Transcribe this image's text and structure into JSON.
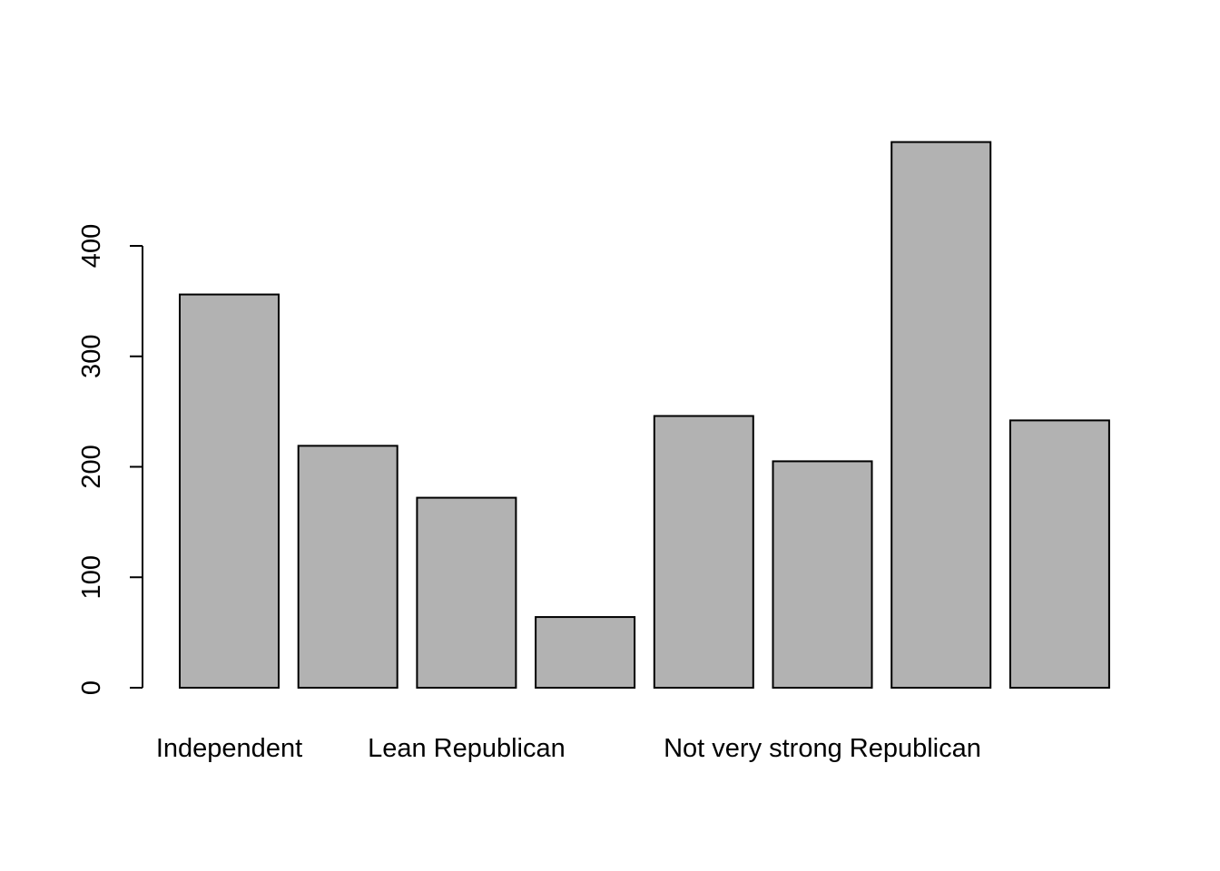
{
  "chart_data": {
    "type": "bar",
    "categories": [
      "Independent",
      null,
      "Lean Republican",
      null,
      null,
      "Not very strong Republican",
      null,
      null
    ],
    "values": [
      356,
      219,
      172,
      64,
      246,
      205,
      494,
      242
    ],
    "color": "#b2b2b2",
    "ylim": [
      0,
      500
    ],
    "yticks": [
      0,
      100,
      200,
      300,
      400
    ],
    "grid": false
  }
}
